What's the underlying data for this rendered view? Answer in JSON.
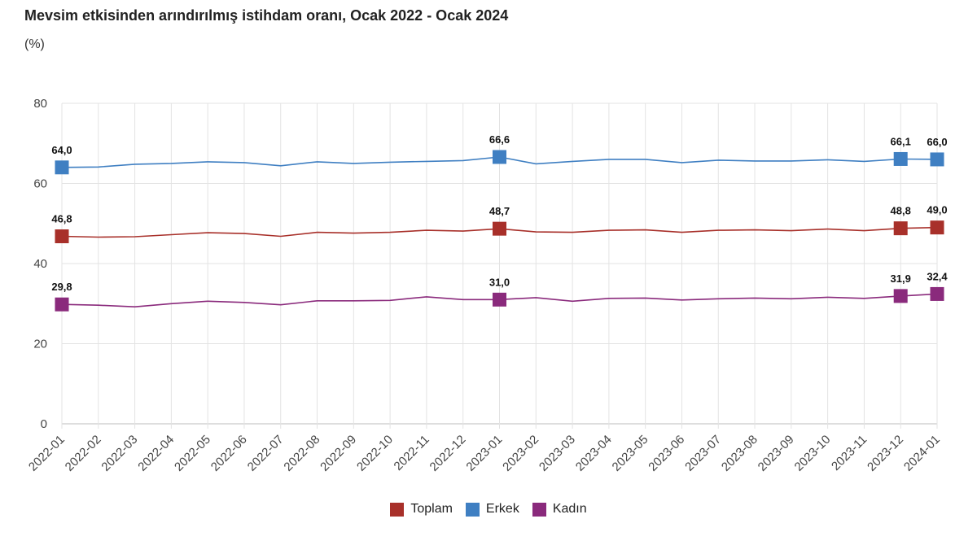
{
  "title": "Mevsim etkisinden arındırılmış istihdam oranı, Ocak 2022 - Ocak 2024",
  "subtitle": "(%)",
  "chart_data": {
    "type": "line",
    "title": "Mevsim etkisinden arındırılmış istihdam oranı, Ocak 2022 - Ocak 2024",
    "ylabel": "(%)",
    "ylim": [
      0,
      80
    ],
    "yticks": [
      0,
      20,
      40,
      60,
      80
    ],
    "grid": true,
    "legend_position": "bottom-center",
    "categories": [
      "2022-01",
      "2022-02",
      "2022-03",
      "2022-04",
      "2022-05",
      "2022-06",
      "2022-07",
      "2022-08",
      "2022-09",
      "2022-10",
      "2022-11",
      "2022-12",
      "2023-01",
      "2023-02",
      "2023-03",
      "2023-04",
      "2023-05",
      "2023-06",
      "2023-07",
      "2023-08",
      "2023-09",
      "2023-10",
      "2023-11",
      "2023-12",
      "2024-01"
    ],
    "series": [
      {
        "name": "Toplam",
        "color": "#a8302a",
        "values": [
          46.8,
          46.6,
          46.7,
          47.2,
          47.7,
          47.5,
          46.8,
          47.8,
          47.6,
          47.8,
          48.3,
          48.1,
          48.7,
          47.9,
          47.8,
          48.3,
          48.4,
          47.8,
          48.3,
          48.4,
          48.2,
          48.6,
          48.2,
          48.8,
          49.0
        ],
        "labels": [
          {
            "index": 0,
            "text": "46,8"
          },
          {
            "index": 12,
            "text": "48,7"
          },
          {
            "index": 23,
            "text": "48,8"
          },
          {
            "index": 24,
            "text": "49,0"
          }
        ]
      },
      {
        "name": "Erkek",
        "color": "#3f7fc2",
        "values": [
          64.0,
          64.1,
          64.8,
          65.0,
          65.4,
          65.2,
          64.4,
          65.4,
          65.0,
          65.3,
          65.5,
          65.7,
          66.6,
          64.9,
          65.5,
          66.0,
          66.0,
          65.2,
          65.8,
          65.6,
          65.6,
          65.9,
          65.5,
          66.1,
          66.0
        ],
        "labels": [
          {
            "index": 0,
            "text": "64,0"
          },
          {
            "index": 12,
            "text": "66,6"
          },
          {
            "index": 23,
            "text": "66,1"
          },
          {
            "index": 24,
            "text": "66,0"
          }
        ]
      },
      {
        "name": "Kadın",
        "color": "#8a2a7c",
        "values": [
          29.8,
          29.6,
          29.2,
          30.0,
          30.6,
          30.3,
          29.7,
          30.7,
          30.7,
          30.8,
          31.7,
          31.0,
          31.0,
          31.5,
          30.6,
          31.3,
          31.4,
          30.9,
          31.2,
          31.4,
          31.2,
          31.6,
          31.3,
          31.9,
          32.4
        ],
        "labels": [
          {
            "index": 0,
            "text": "29,8"
          },
          {
            "index": 12,
            "text": "31,0"
          },
          {
            "index": 23,
            "text": "31,9"
          },
          {
            "index": 24,
            "text": "32,4"
          }
        ]
      }
    ]
  },
  "legend": [
    {
      "label": "Toplam",
      "color": "#a8302a"
    },
    {
      "label": "Erkek",
      "color": "#3f7fc2"
    },
    {
      "label": "Kadın",
      "color": "#8a2a7c"
    }
  ]
}
